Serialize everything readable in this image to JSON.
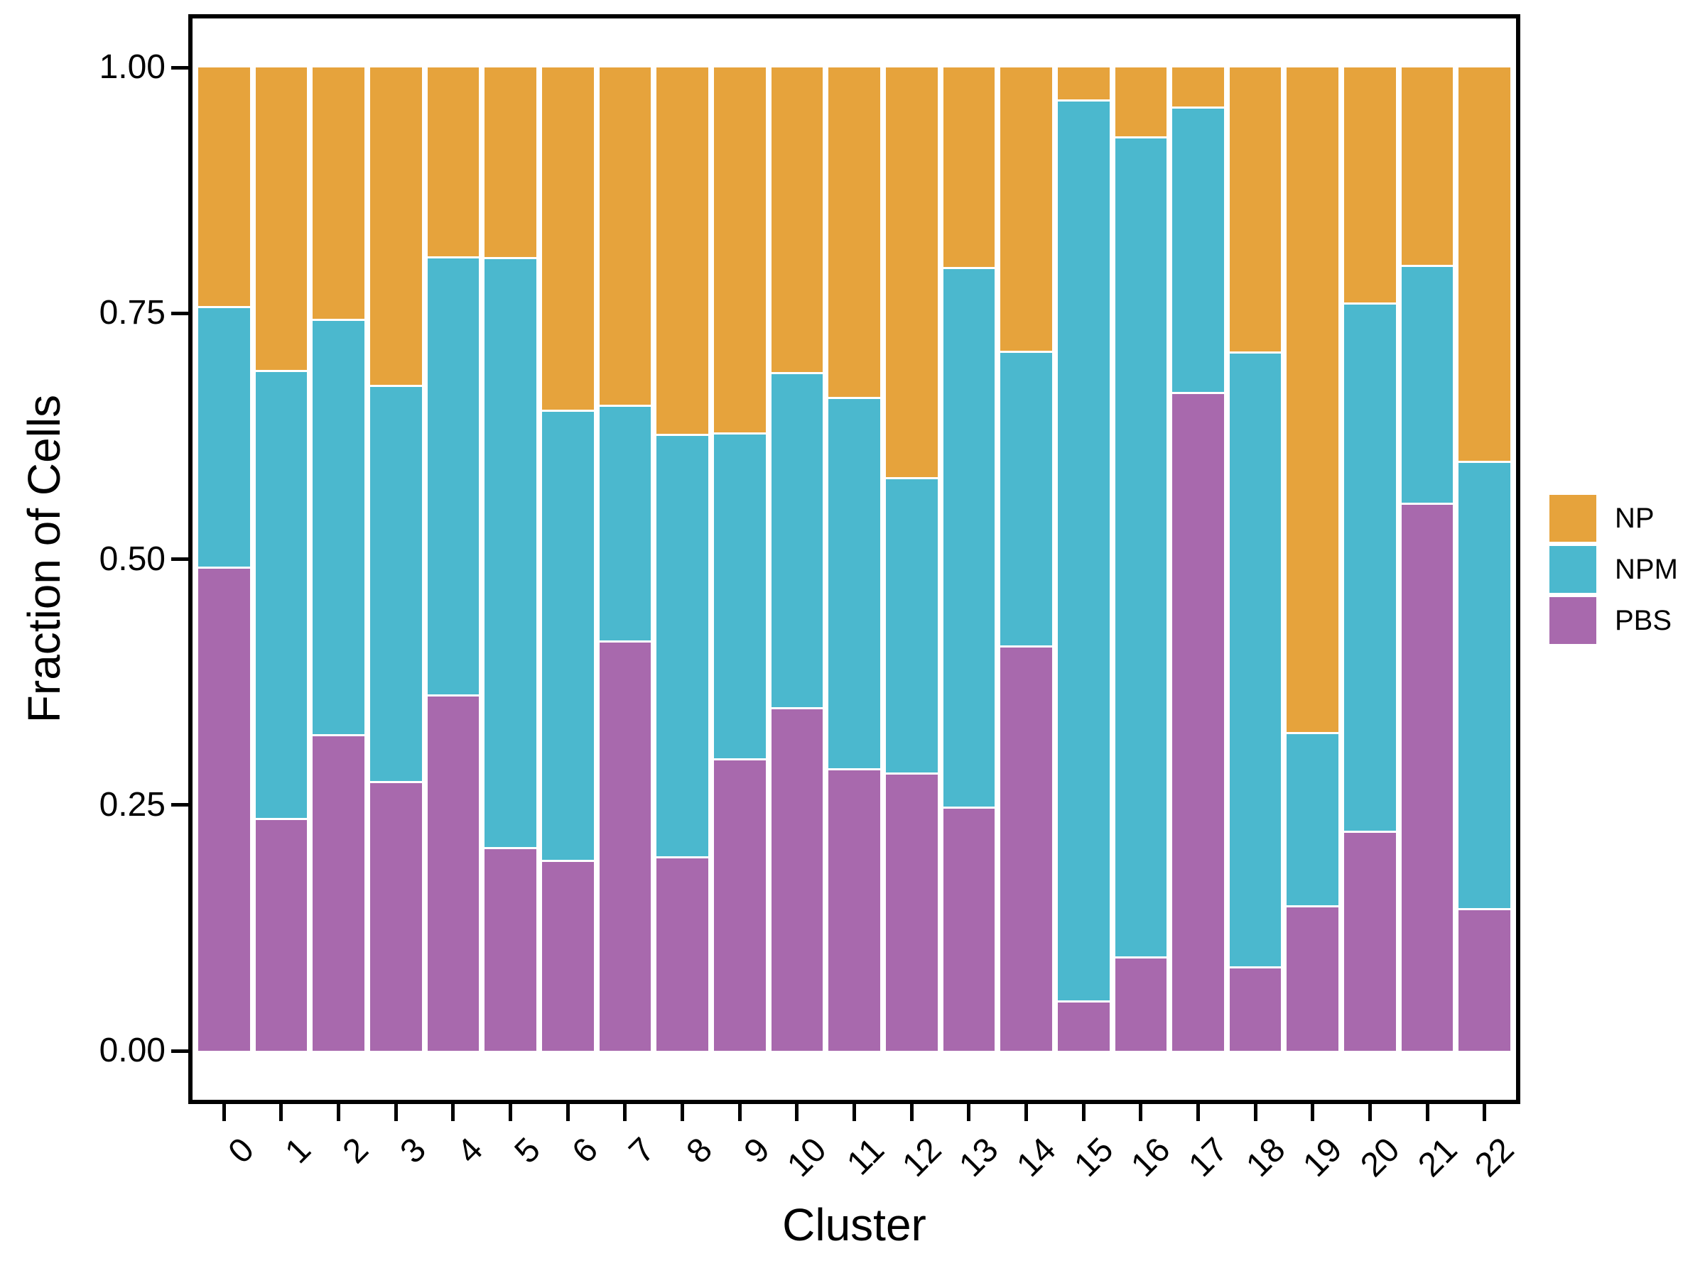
{
  "chart_data": {
    "type": "bar",
    "stacked": true,
    "title": "",
    "xlabel": "Cluster",
    "ylabel": "Fraction of Cells",
    "categories": [
      "0",
      "1",
      "2",
      "3",
      "4",
      "5",
      "6",
      "7",
      "8",
      "9",
      "10",
      "11",
      "12",
      "13",
      "14",
      "15",
      "16",
      "17",
      "18",
      "19",
      "20",
      "21",
      "22"
    ],
    "y_ticks": [
      "1.00",
      "0.75",
      "0.50",
      "0.25",
      "0.00"
    ],
    "ylim": [
      0,
      1
    ],
    "grid": false,
    "legend_position": "right-center",
    "series": [
      {
        "name": "NP",
        "color": "#E6A33C",
        "values": [
          0.245,
          0.31,
          0.258,
          0.325,
          0.194,
          0.195,
          0.35,
          0.345,
          0.375,
          0.373,
          0.312,
          0.337,
          0.419,
          0.205,
          0.29,
          0.035,
          0.072,
          0.042,
          0.291,
          0.678,
          0.241,
          0.203,
          0.402
        ]
      },
      {
        "name": "NPM",
        "color": "#4BB8CE",
        "values": [
          0.265,
          0.455,
          0.422,
          0.403,
          0.446,
          0.6,
          0.458,
          0.24,
          0.429,
          0.332,
          0.341,
          0.378,
          0.3,
          0.549,
          0.3,
          0.916,
          0.834,
          0.29,
          0.625,
          0.176,
          0.537,
          0.242,
          0.455
        ]
      },
      {
        "name": "PBS",
        "color": "#A869AD",
        "values": [
          0.49,
          0.235,
          0.32,
          0.272,
          0.36,
          0.205,
          0.192,
          0.415,
          0.196,
          0.295,
          0.347,
          0.285,
          0.281,
          0.246,
          0.41,
          0.049,
          0.094,
          0.668,
          0.084,
          0.146,
          0.222,
          0.555,
          0.143
        ]
      }
    ]
  },
  "colors": {
    "axis": "#000000",
    "background": "#ffffff",
    "segment_separator": "#ffffff"
  }
}
